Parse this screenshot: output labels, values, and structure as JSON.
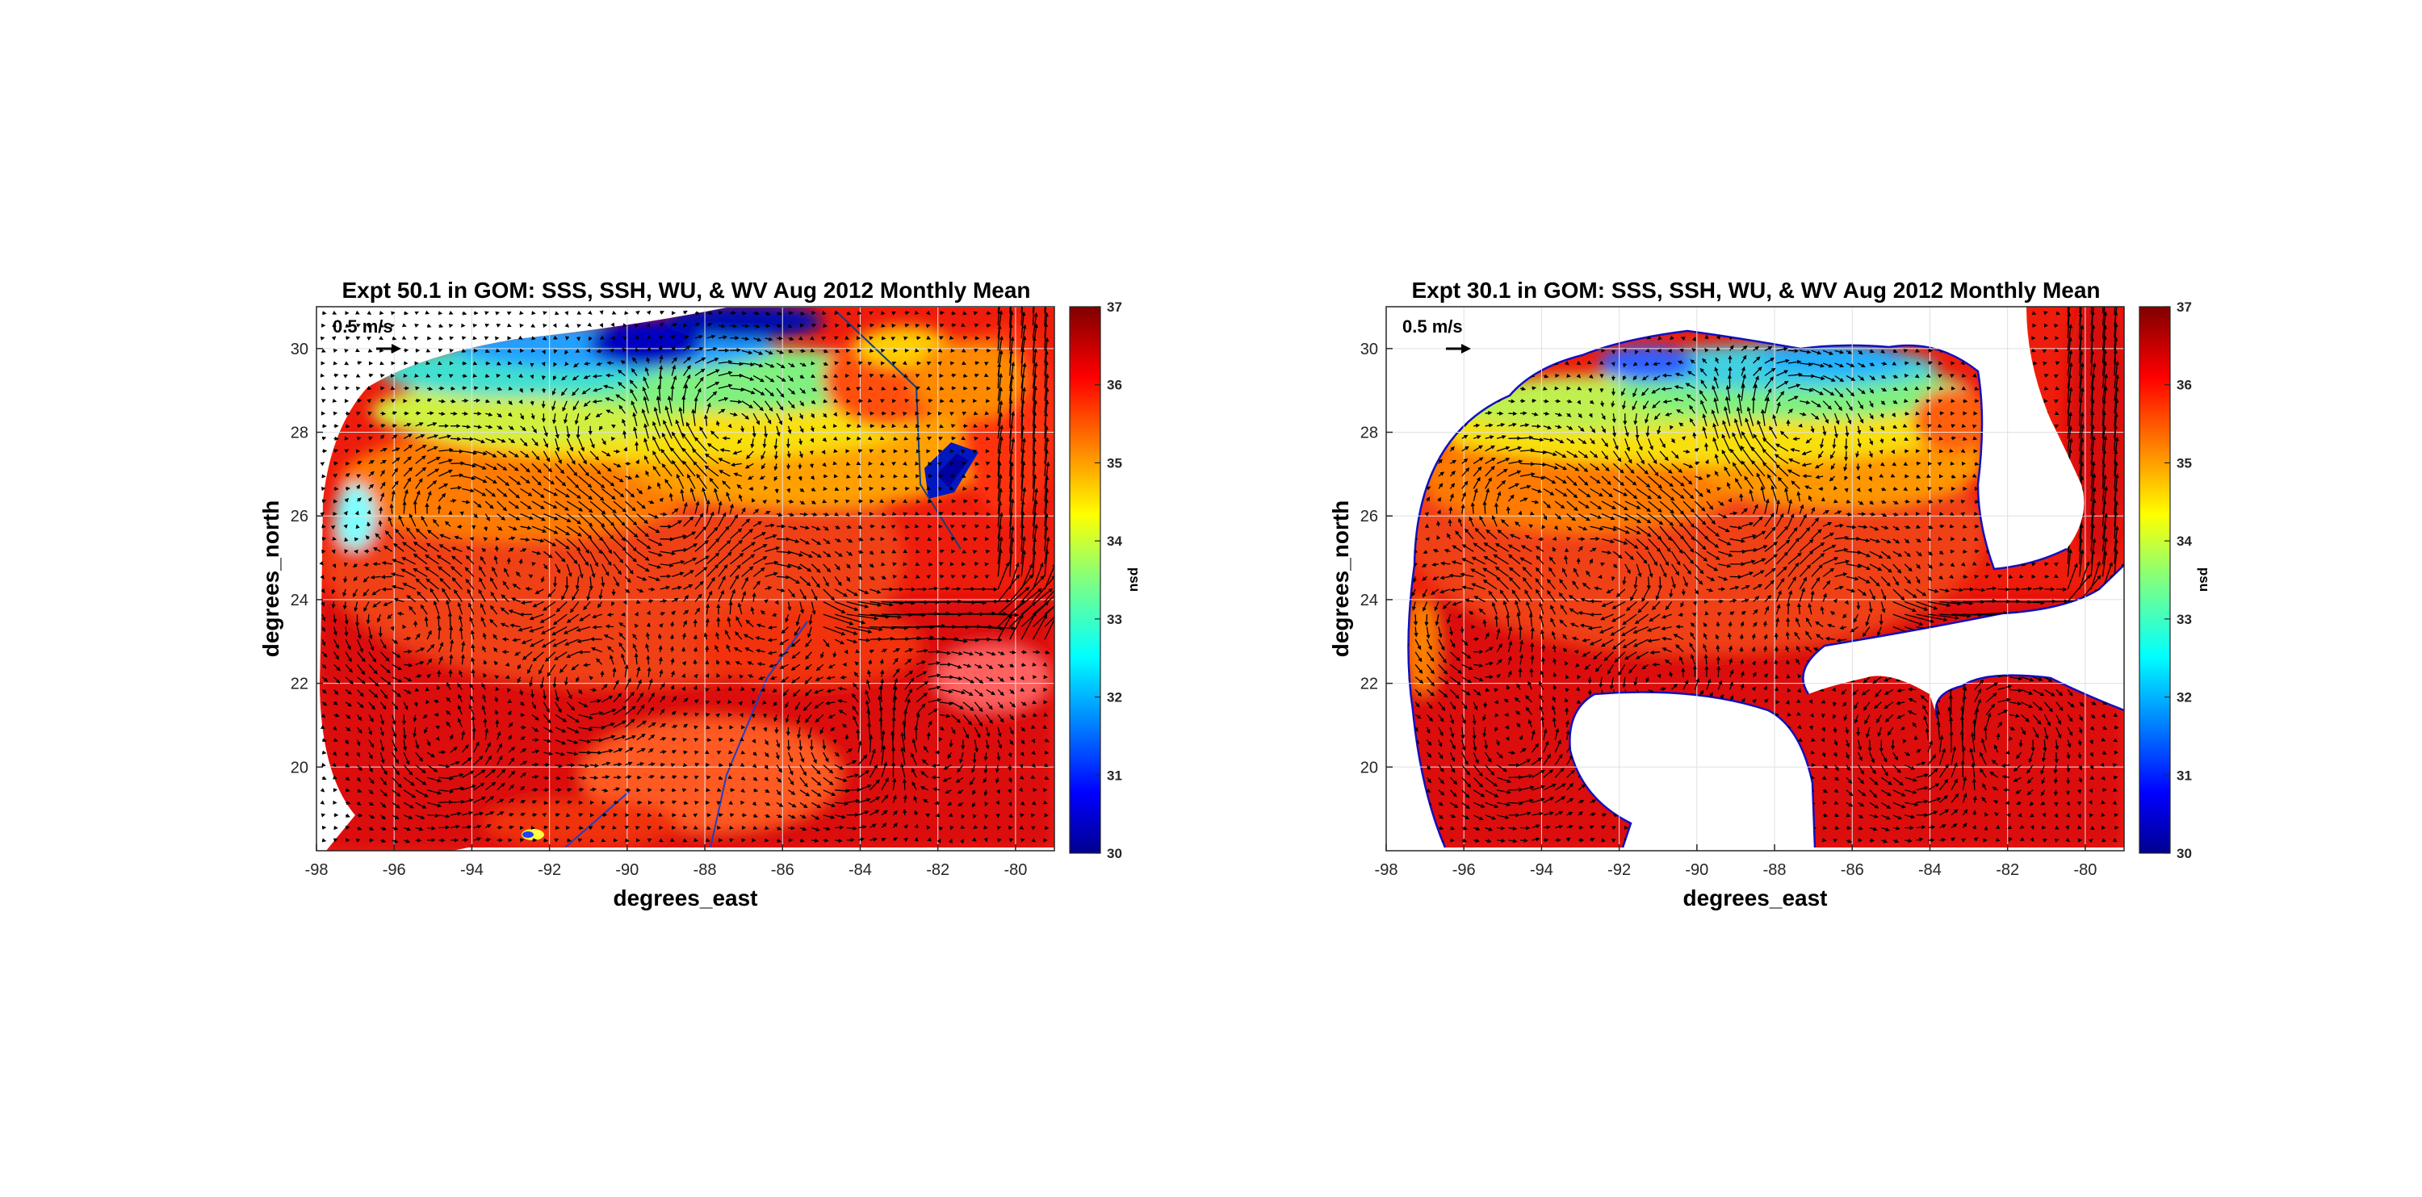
{
  "chart_data": [
    {
      "type": "heatmap",
      "title": "Expt 50.1 in GOM: SSS, SSH, WU, & WV Aug 2012 Monthly Mean",
      "xlabel": "degrees_east",
      "ylabel": "degrees_north",
      "xlim": [
        -98,
        -79
      ],
      "ylim": [
        18,
        31
      ],
      "xticks": [
        -98,
        -96,
        -94,
        -92,
        -90,
        -88,
        -86,
        -84,
        -82,
        -80
      ],
      "yticks": [
        20,
        22,
        24,
        26,
        28,
        30
      ],
      "grid": true,
      "colorbar": {
        "label": "psu",
        "min": 30,
        "max": 37,
        "ticks": [
          30,
          31,
          32,
          33,
          34,
          35,
          36,
          37
        ],
        "colormap": "jet"
      },
      "reference_vector": {
        "label": "0.5 m/s",
        "speed": 0.5
      },
      "land_mask": "none (extrapolated over land)"
    },
    {
      "type": "heatmap",
      "title": "Expt 30.1 in GOM: SSS, SSH, WU, & WV Aug 2012 Monthly Mean",
      "xlabel": "degrees_east",
      "ylabel": "degrees_north",
      "xlim": [
        -98,
        -79
      ],
      "ylim": [
        18,
        31
      ],
      "xticks": [
        -98,
        -96,
        -94,
        -92,
        -90,
        -88,
        -86,
        -84,
        -82,
        -80
      ],
      "yticks": [
        20,
        22,
        24,
        26,
        28,
        30
      ],
      "grid": true,
      "colorbar": {
        "label": "psu",
        "min": 30,
        "max": 37,
        "ticks": [
          30,
          31,
          32,
          33,
          34,
          35,
          36,
          37
        ],
        "colormap": "jet"
      },
      "reference_vector": {
        "label": "0.5 m/s",
        "speed": 0.5
      },
      "land_mask": "white"
    }
  ],
  "colors": {
    "arrow": "#000000",
    "axis": "#262626",
    "grid": "#e6e6e6",
    "land": "#ffffff",
    "coast": "#1010c0"
  }
}
